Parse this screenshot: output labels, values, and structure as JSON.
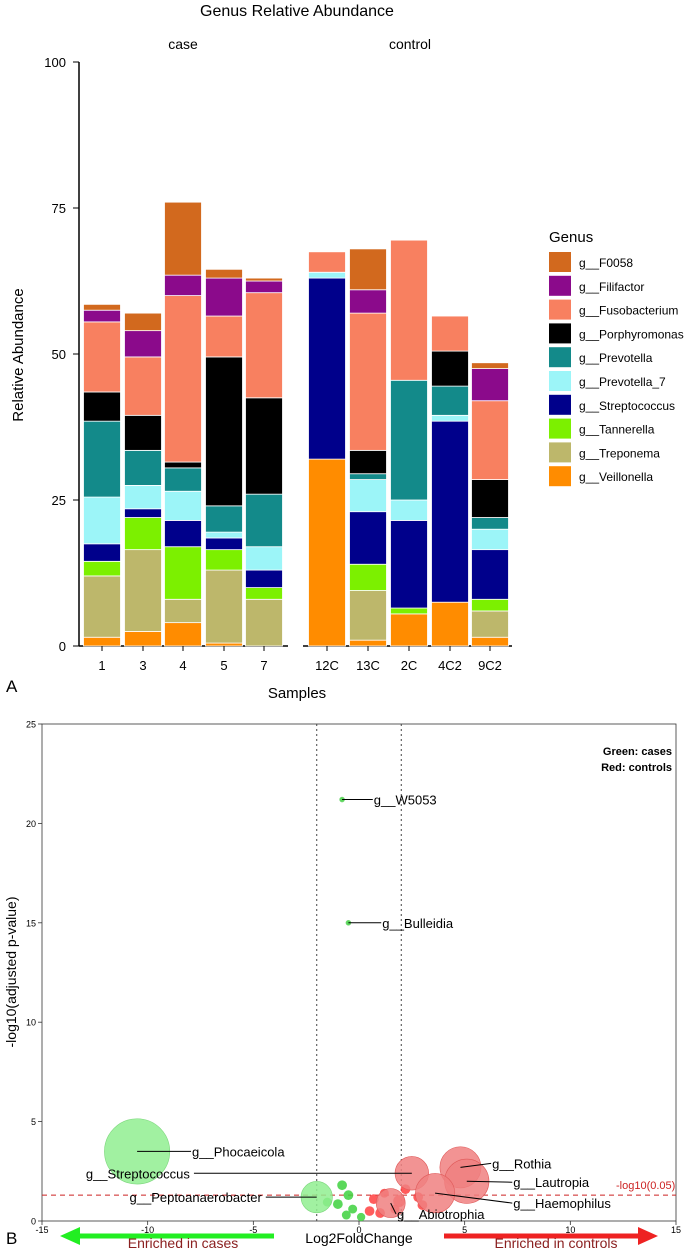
{
  "panel_labels": {
    "a": "A",
    "b": "B"
  },
  "colors": {
    "genus": {
      "g__F0058": "#d2691e",
      "g__Filifactor": "#8b0a8b",
      "g__Fusobacterium": "#f88060",
      "g__Porphyromonas": "#000000",
      "g__Prevotella": "#138a8a",
      "g__Prevotella_7": "#9cf5f8",
      "g__Streptococcus": "#00008b",
      "g__Tannerella": "#7cf000",
      "g__Treponema": "#bdb76b",
      "g__Veillonella": "#ff8c00"
    },
    "case_dot": "#3ed13e",
    "case_fill": "#90ee90",
    "control_dot": "#ff4040",
    "control_fill": "#f08080",
    "threshold": "#cc2222",
    "arrow_cases": "#22ee22",
    "arrow_controls": "#ee2222",
    "arrow_text": "#8b2020"
  },
  "chart_data": [
    {
      "type": "bar",
      "stacked": true,
      "title": "Genus Relative Abundance",
      "facets": [
        "case",
        "control"
      ],
      "xlabel": "Samples",
      "ylabel": "Relative Abundance",
      "ylim": [
        0,
        100
      ],
      "yticks": [
        "0",
        "25",
        "50",
        "75",
        "100"
      ],
      "legend_title": "Genus",
      "legend_position": "right",
      "legend_entries": [
        "g__F0058",
        "g__Filifactor",
        "g__Fusobacterium",
        "g__Porphyromonas",
        "g__Prevotella",
        "g__Prevotella_7",
        "g__Streptococcus",
        "g__Tannerella",
        "g__Treponema",
        "g__Veillonella"
      ],
      "stack_order": [
        "g__Veillonella",
        "g__Treponema",
        "g__Tannerella",
        "g__Streptococcus",
        "g__Prevotella_7",
        "g__Prevotella",
        "g__Porphyromonas",
        "g__Fusobacterium",
        "g__Filifactor",
        "g__F0058"
      ],
      "samples": [
        {
          "label": "1",
          "facet": "case",
          "values": {
            "g__Veillonella": 1.5,
            "g__Treponema": 10.5,
            "g__Tannerella": 2.5,
            "g__Streptococcus": 3,
            "g__Prevotella_7": 8,
            "g__Prevotella": 13,
            "g__Porphyromonas": 5,
            "g__Fusobacterium": 12,
            "g__Filifactor": 2,
            "g__F0058": 1
          }
        },
        {
          "label": "3",
          "facet": "case",
          "values": {
            "g__Veillonella": 2.5,
            "g__Treponema": 14,
            "g__Tannerella": 5.5,
            "g__Streptococcus": 1.5,
            "g__Prevotella_7": 4,
            "g__Prevotella": 6,
            "g__Porphyromonas": 6,
            "g__Fusobacterium": 10,
            "g__Filifactor": 4.5,
            "g__F0058": 3
          }
        },
        {
          "label": "4",
          "facet": "case",
          "values": {
            "g__Veillonella": 4,
            "g__Treponema": 4,
            "g__Tannerella": 9,
            "g__Streptococcus": 4.5,
            "g__Prevotella_7": 5,
            "g__Prevotella": 4,
            "g__Porphyromonas": 1,
            "g__Fusobacterium": 28.5,
            "g__Filifactor": 3.5,
            "g__F0058": 12.5
          }
        },
        {
          "label": "5",
          "facet": "case",
          "values": {
            "g__Veillonella": 0.5,
            "g__Treponema": 12.5,
            "g__Tannerella": 3.5,
            "g__Streptococcus": 2,
            "g__Prevotella_7": 1,
            "g__Prevotella": 4.5,
            "g__Porphyromonas": 25.5,
            "g__Fusobacterium": 7,
            "g__Filifactor": 6.5,
            "g__F0058": 1.5
          }
        },
        {
          "label": "7",
          "facet": "case",
          "values": {
            "g__Veillonella": 0,
            "g__Treponema": 8,
            "g__Tannerella": 2,
            "g__Streptococcus": 3,
            "g__Prevotella_7": 4,
            "g__Prevotella": 9,
            "g__Porphyromonas": 16.5,
            "g__Fusobacterium": 18,
            "g__Filifactor": 2,
            "g__F0058": 0.5
          }
        },
        {
          "label": "12C",
          "facet": "control",
          "values": {
            "g__Veillonella": 32,
            "g__Treponema": 0,
            "g__Tannerella": 0,
            "g__Streptococcus": 31,
            "g__Prevotella_7": 1,
            "g__Prevotella": 0,
            "g__Porphyromonas": 0,
            "g__Fusobacterium": 3.5,
            "g__Filifactor": 0,
            "g__F0058": 0
          }
        },
        {
          "label": "13C",
          "facet": "control",
          "values": {
            "g__Veillonella": 1,
            "g__Treponema": 8.5,
            "g__Tannerella": 4.5,
            "g__Streptococcus": 9,
            "g__Prevotella_7": 5.5,
            "g__Prevotella": 1,
            "g__Porphyromonas": 4,
            "g__Fusobacterium": 23.5,
            "g__Filifactor": 4,
            "g__F0058": 7
          }
        },
        {
          "label": "2C",
          "facet": "control",
          "values": {
            "g__Veillonella": 5.5,
            "g__Treponema": 0,
            "g__Tannerella": 1,
            "g__Streptococcus": 15,
            "g__Prevotella_7": 3.5,
            "g__Prevotella": 20.5,
            "g__Porphyromonas": 0,
            "g__Fusobacterium": 24,
            "g__Filifactor": 0,
            "g__F0058": 0
          }
        },
        {
          "label": "4C2",
          "facet": "control",
          "values": {
            "g__Veillonella": 7.5,
            "g__Treponema": 0,
            "g__Tannerella": 0,
            "g__Streptococcus": 31,
            "g__Prevotella_7": 1,
            "g__Prevotella": 5,
            "g__Porphyromonas": 6,
            "g__Fusobacterium": 6,
            "g__Filifactor": 0,
            "g__F0058": 0
          }
        },
        {
          "label": "9C2",
          "facet": "control",
          "values": {
            "g__Veillonella": 1.5,
            "g__Treponema": 4.5,
            "g__Tannerella": 2,
            "g__Streptococcus": 8.5,
            "g__Prevotella_7": 3.5,
            "g__Prevotella": 2,
            "g__Porphyromonas": 6.5,
            "g__Fusobacterium": 13.5,
            "g__Filifactor": 5.5,
            "g__F0058": 1
          }
        }
      ]
    },
    {
      "type": "scatter",
      "subtype": "volcano",
      "xlabel": "Log2FoldChange",
      "ylabel": "-log10(adjusted p-value)",
      "xlim": [
        -15,
        15
      ],
      "ylim": [
        0,
        25
      ],
      "xticks": [
        "-15",
        "-10",
        "-5",
        "0",
        "5",
        "10",
        "15"
      ],
      "yticks": [
        "0",
        "5",
        "10",
        "15",
        "20",
        "25"
      ],
      "vlines": [
        -2,
        2
      ],
      "threshold": {
        "y": 1.301,
        "label": "-log10(0.05)"
      },
      "legend_note": [
        "Green: cases",
        "Red: controls"
      ],
      "arrows": {
        "left": "Enriched in cases",
        "right": "Enriched in controls"
      },
      "labeled_points": [
        {
          "label": "g__W5053",
          "x": -0.8,
          "y": 21.2,
          "group": "cases",
          "size": 2,
          "label_x": 0.7,
          "label_y": 21.2
        },
        {
          "label": "g__Bulleidia",
          "x": -0.5,
          "y": 15.0,
          "group": "cases",
          "size": 1.5,
          "label_x": 1.1,
          "label_y": 15.0
        },
        {
          "label": "g__Phocaeicola",
          "x": -10.5,
          "y": 3.5,
          "group": "cases",
          "size": 30,
          "label_x": -7.9,
          "label_y": 3.5
        },
        {
          "label": "g__Streptococcus",
          "x": 2.5,
          "y": 2.4,
          "group": "controls",
          "size": 7,
          "label_x": -8.0,
          "label_y": 2.4
        },
        {
          "label": "g__Peptoanaerobacter",
          "x": -2.0,
          "y": 1.2,
          "group": "cases",
          "size": 6,
          "label_x": -4.6,
          "label_y": 1.2
        },
        {
          "label": "g__Rothia",
          "x": 4.8,
          "y": 2.7,
          "group": "controls",
          "size": 11,
          "label_x": 6.3,
          "label_y": 2.9
        },
        {
          "label": "g__Lautropia",
          "x": 5.1,
          "y": 2.0,
          "group": "controls",
          "size": 13,
          "label_x": 7.3,
          "label_y": 1.95
        },
        {
          "label": "g__Haemophilus",
          "x": 3.6,
          "y": 1.4,
          "group": "controls",
          "size": 10,
          "label_x": 7.3,
          "label_y": 0.9
        },
        {
          "label": "g__Abiotrophia",
          "x": 1.5,
          "y": 0.9,
          "group": "controls",
          "size": 5,
          "label_x": 1.8,
          "label_y": 0.35
        }
      ],
      "small_points": [
        {
          "x": -0.8,
          "y": 1.8,
          "group": "cases",
          "size": 1.5
        },
        {
          "x": -0.5,
          "y": 1.3,
          "group": "cases",
          "size": 1.5
        },
        {
          "x": -1.0,
          "y": 0.85,
          "group": "cases",
          "size": 1.5
        },
        {
          "x": -0.3,
          "y": 0.6,
          "group": "cases",
          "size": 1.2
        },
        {
          "x": -0.6,
          "y": 0.3,
          "group": "cases",
          "size": 1.2
        },
        {
          "x": -1.5,
          "y": 0.95,
          "group": "cases",
          "size": 1.2
        },
        {
          "x": 0.1,
          "y": 0.2,
          "group": "cases",
          "size": 1
        },
        {
          "x": 0.5,
          "y": 0.5,
          "group": "controls",
          "size": 1.5
        },
        {
          "x": 0.7,
          "y": 1.1,
          "group": "controls",
          "size": 1.5
        },
        {
          "x": 1.0,
          "y": 0.4,
          "group": "controls",
          "size": 1.5
        },
        {
          "x": 1.2,
          "y": 1.4,
          "group": "controls",
          "size": 1.2
        },
        {
          "x": 1.9,
          "y": 1.0,
          "group": "controls",
          "size": 2.5
        },
        {
          "x": 2.2,
          "y": 1.6,
          "group": "controls",
          "size": 1.5
        },
        {
          "x": 1.7,
          "y": 0.6,
          "group": "controls",
          "size": 1.2
        },
        {
          "x": 3.0,
          "y": 0.8,
          "group": "controls",
          "size": 1.5
        },
        {
          "x": 2.8,
          "y": 1.2,
          "group": "controls",
          "size": 1.5
        }
      ]
    }
  ]
}
